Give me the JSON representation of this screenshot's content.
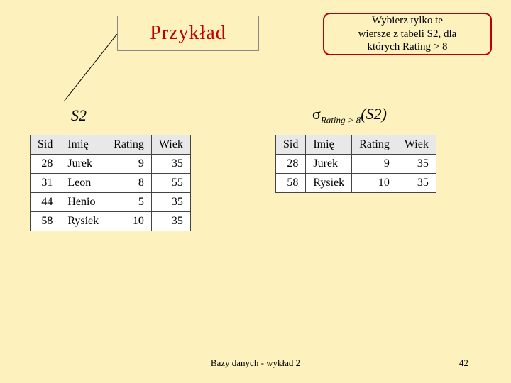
{
  "title": "Przykład",
  "callout": {
    "line1": "Wybierz tylko te",
    "line2": "wiersze z tabeli S2, dla",
    "line3": "których Rating > 8"
  },
  "s2_label": "S2",
  "sigma": {
    "symbol": "σ",
    "subscript": "Rating > 8",
    "arg": "(S2)"
  },
  "table_left": {
    "headers": [
      "Sid",
      "Imię",
      "Rating",
      "Wiek"
    ],
    "rows": [
      [
        "28",
        "Jurek",
        "9",
        "35"
      ],
      [
        "31",
        "Leon",
        "8",
        "55"
      ],
      [
        "44",
        "Henio",
        "5",
        "35"
      ],
      [
        "58",
        "Rysiek",
        "10",
        "35"
      ]
    ]
  },
  "table_right": {
    "headers": [
      "Sid",
      "Imię",
      "Rating",
      "Wiek"
    ],
    "rows": [
      [
        "28",
        "Jurek",
        "9",
        "35"
      ],
      [
        "58",
        "Rysiek",
        "10",
        "35"
      ]
    ]
  },
  "footer_text": "Bazy danych - wykład 2",
  "page_number": "42",
  "colors": {
    "background": "#fdf2bd",
    "title_color": "#c00000",
    "callout_border": "#c00000",
    "table_header_bg": "#e8e8e8",
    "table_border": "#444444",
    "arrow_color": "#000000"
  }
}
